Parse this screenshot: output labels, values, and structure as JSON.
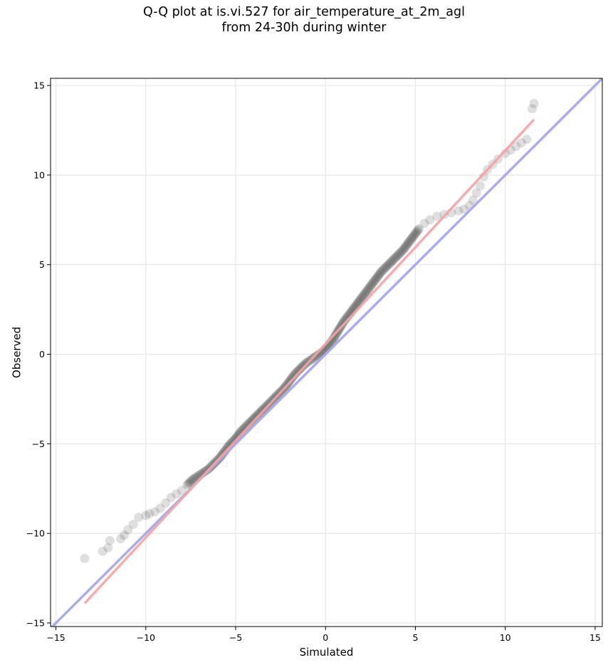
{
  "chart_data": {
    "type": "scatter",
    "title": "Q-Q plot at is.vi.527 for air_temperature_at_2m_agl",
    "subtitle": "from 24-30h during winter",
    "xlabel": "Simulated",
    "ylabel": "Observed",
    "xlim": [
      -15.3,
      15.4
    ],
    "ylim": [
      -15.2,
      15.4
    ],
    "xticks": [
      -15,
      -10,
      -5,
      0,
      5,
      10,
      15
    ],
    "yticks": [
      -15,
      -10,
      -5,
      0,
      5,
      10,
      15
    ],
    "xtick_labels": [
      "−15",
      "−10",
      "−5",
      "0",
      "5",
      "10",
      "15"
    ],
    "ytick_labels": [
      "−15",
      "−10",
      "−5",
      "0",
      "5",
      "10",
      "15"
    ],
    "grid": true,
    "colors": {
      "identity_line": "#a6a6f0",
      "fit_line": "#f5a3a3",
      "points": "#3a3a3a"
    },
    "identity_line": {
      "x": [
        -15.3,
        15.4
      ],
      "y": [
        -15.3,
        15.4
      ]
    },
    "fit_line": {
      "x": [
        -13.4,
        11.6
      ],
      "y": [
        -13.9,
        13.1
      ]
    },
    "quantiles": {
      "x": [
        -13.4,
        -12.4,
        -12.1,
        -12.0,
        -11.4,
        -11.2,
        -11.0,
        -10.7,
        -10.4,
        -10.0,
        -9.8,
        -9.5,
        -9.2,
        -8.9,
        -8.6,
        -8.3,
        -8.0,
        -7.7,
        -7.4,
        -7.1,
        -6.8,
        -6.5,
        -6.2,
        -5.9,
        -5.6,
        -5.3,
        -5.0,
        -4.7,
        -4.4,
        -4.1,
        -3.8,
        -3.5,
        -3.2,
        -2.9,
        -2.6,
        -2.3,
        -2.0,
        -1.7,
        -1.4,
        -1.1,
        -0.8,
        -0.5,
        -0.2,
        0.1,
        0.4,
        0.7,
        1.0,
        1.3,
        1.6,
        1.9,
        2.2,
        2.5,
        2.8,
        3.1,
        3.4,
        3.7,
        4.0,
        4.3,
        4.6,
        4.9,
        5.2,
        5.5,
        5.8,
        6.2,
        6.6,
        7.0,
        7.4,
        7.7,
        8.0,
        8.2,
        8.4,
        8.6,
        8.8,
        9.0,
        9.3,
        9.6,
        10.0,
        10.3,
        10.6,
        10.9,
        11.2,
        11.5,
        11.6
      ],
      "y": [
        -11.4,
        -11.0,
        -10.8,
        -10.4,
        -10.3,
        -10.1,
        -9.8,
        -9.5,
        -9.1,
        -9.0,
        -8.9,
        -8.8,
        -8.6,
        -8.3,
        -8.0,
        -7.8,
        -7.6,
        -7.3,
        -7.0,
        -6.8,
        -6.6,
        -6.4,
        -6.1,
        -5.8,
        -5.4,
        -5.0,
        -4.7,
        -4.3,
        -4.0,
        -3.7,
        -3.4,
        -3.1,
        -2.8,
        -2.5,
        -2.2,
        -1.9,
        -1.5,
        -1.1,
        -0.8,
        -0.5,
        -0.3,
        -0.1,
        0.1,
        0.4,
        0.8,
        1.3,
        1.8,
        2.2,
        2.6,
        3.0,
        3.4,
        3.8,
        4.2,
        4.6,
        4.9,
        5.2,
        5.5,
        5.8,
        6.2,
        6.6,
        7.0,
        7.3,
        7.5,
        7.7,
        7.8,
        7.9,
        8.0,
        8.1,
        8.3,
        8.6,
        9.0,
        9.4,
        9.9,
        10.3,
        10.6,
        10.9,
        11.2,
        11.4,
        11.6,
        11.8,
        12.0,
        13.7,
        14.0
      ]
    }
  }
}
